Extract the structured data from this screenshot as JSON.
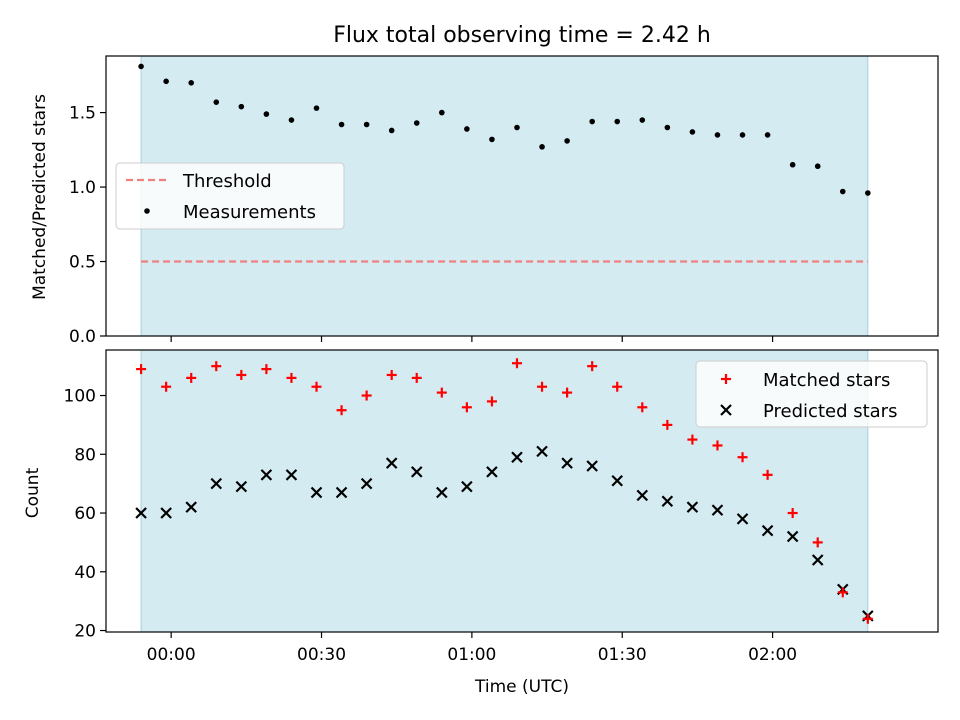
{
  "title": "Flux total observing time = 2.42 h",
  "colors": {
    "shade": "#d4ebf1",
    "threshold": "#f08080",
    "measurement": "#000000",
    "matched": "#ff0000",
    "predicted": "#000000"
  },
  "chart_data": [
    {
      "type": "scatter",
      "panel": "top",
      "title": "Flux total observing time = 2.42 h",
      "xlabel": "",
      "ylabel": "Matched/Predicted stars",
      "ylim": [
        0,
        1.88
      ],
      "yticks": [
        0.0,
        0.5,
        1.0,
        1.5
      ],
      "ytick_labels": [
        "0.0",
        "0.5",
        "1.0",
        "1.5"
      ],
      "xlim": [
        "-0:13",
        "2:33"
      ],
      "shaded_span": [
        "-0:06",
        "2:19"
      ],
      "legend_location": "center-left",
      "legend": [
        "Threshold",
        "Measurements"
      ],
      "threshold": {
        "name": "Threshold",
        "value": 0.5,
        "style": "dashed"
      },
      "series": [
        {
          "name": "Measurements",
          "marker": "dot",
          "x": [
            "-0:06",
            "-0:01",
            "0:04",
            "0:09",
            "0:14",
            "0:19",
            "0:24",
            "0:29",
            "0:34",
            "0:39",
            "0:44",
            "0:49",
            "0:54",
            "0:59",
            "1:04",
            "1:09",
            "1:14",
            "1:19",
            "1:24",
            "1:29",
            "1:34",
            "1:39",
            "1:44",
            "1:49",
            "1:54",
            "1:59",
            "2:04",
            "2:09",
            "2:14",
            "2:19"
          ],
          "y": [
            1.81,
            1.71,
            1.7,
            1.57,
            1.54,
            1.49,
            1.45,
            1.53,
            1.42,
            1.42,
            1.38,
            1.43,
            1.5,
            1.39,
            1.32,
            1.4,
            1.27,
            1.31,
            1.44,
            1.44,
            1.45,
            1.4,
            1.37,
            1.35,
            1.35,
            1.35,
            1.15,
            1.14,
            0.97,
            0.96
          ]
        }
      ]
    },
    {
      "type": "scatter",
      "panel": "bottom",
      "xlabel": "Time (UTC)",
      "ylabel": "Count",
      "ylim": [
        19.5,
        115.5
      ],
      "yticks": [
        20,
        40,
        60,
        80,
        100
      ],
      "ytick_labels": [
        "20",
        "40",
        "60",
        "80",
        "100"
      ],
      "xlim": [
        "-0:13",
        "2:33"
      ],
      "xticks": [
        "0:00",
        "0:30",
        "1:00",
        "1:30",
        "2:00"
      ],
      "xtick_labels": [
        "00:00",
        "00:30",
        "01:00",
        "01:30",
        "02:00"
      ],
      "shaded_span": [
        "-0:06",
        "2:19"
      ],
      "legend_location": "upper-right",
      "legend": [
        "Matched stars",
        "Predicted stars"
      ],
      "series": [
        {
          "name": "Matched stars",
          "marker": "plus",
          "x": [
            "-0:06",
            "-0:01",
            "0:04",
            "0:09",
            "0:14",
            "0:19",
            "0:24",
            "0:29",
            "0:34",
            "0:39",
            "0:44",
            "0:49",
            "0:54",
            "0:59",
            "1:04",
            "1:09",
            "1:14",
            "1:19",
            "1:24",
            "1:29",
            "1:34",
            "1:39",
            "1:44",
            "1:49",
            "1:54",
            "1:59",
            "2:04",
            "2:09",
            "2:14",
            "2:19"
          ],
          "y": [
            109,
            103,
            106,
            110,
            107,
            109,
            106,
            103,
            95,
            100,
            107,
            106,
            101,
            96,
            98,
            111,
            103,
            101,
            110,
            103,
            96,
            90,
            85,
            83,
            79,
            73,
            60,
            50,
            33,
            24
          ]
        },
        {
          "name": "Predicted stars",
          "marker": "x",
          "x": [
            "-0:06",
            "-0:01",
            "0:04",
            "0:09",
            "0:14",
            "0:19",
            "0:24",
            "0:29",
            "0:34",
            "0:39",
            "0:44",
            "0:49",
            "0:54",
            "0:59",
            "1:04",
            "1:09",
            "1:14",
            "1:19",
            "1:24",
            "1:29",
            "1:34",
            "1:39",
            "1:44",
            "1:49",
            "1:54",
            "1:59",
            "2:04",
            "2:09",
            "2:14",
            "2:19"
          ],
          "y": [
            60,
            60,
            62,
            70,
            69,
            73,
            73,
            67,
            67,
            70,
            77,
            74,
            67,
            69,
            74,
            79,
            81,
            77,
            76,
            71,
            66,
            64,
            62,
            61,
            58,
            54,
            52,
            44,
            34,
            25
          ]
        }
      ]
    }
  ]
}
